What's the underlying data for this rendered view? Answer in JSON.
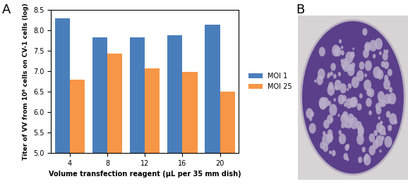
{
  "panel_labels": [
    "A",
    "B"
  ],
  "chart_data": {
    "type": "bar",
    "x_label": "Volume transfection reagent (µL per 35 mm dish)",
    "y_label": "Titer of VV from 10⁶ cells on CV-1 cells (log)",
    "categories": [
      "4",
      "8",
      "12",
      "16",
      "20"
    ],
    "series": [
      {
        "name": "MOI 1",
        "color": "#4a7ebb",
        "values": [
          8.28,
          7.82,
          7.82,
          7.87,
          8.13
        ]
      },
      {
        "name": "MOI 25",
        "color": "#f79646",
        "values": [
          6.78,
          7.43,
          7.06,
          6.98,
          6.5
        ]
      }
    ],
    "ylim": [
      5.0,
      8.5
    ],
    "yticks": [
      5.0,
      5.5,
      6.0,
      6.5,
      7.0,
      7.5,
      8.0,
      8.5
    ],
    "grid": false,
    "legend": "right"
  }
}
